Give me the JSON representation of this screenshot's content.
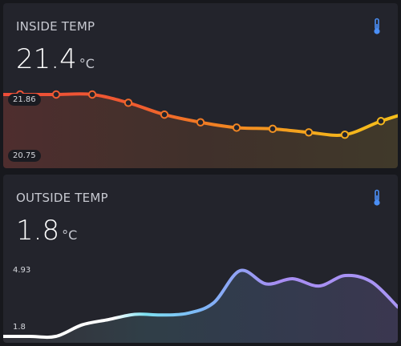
{
  "inside": {
    "title": "INSIDE TEMP",
    "value": "21.4",
    "unit": "°C",
    "max_label": "21.86",
    "min_label": "20.75",
    "icon": "thermometer-icon",
    "series": [
      21.86,
      21.86,
      21.86,
      21.86,
      21.72,
      21.52,
      21.39,
      21.3,
      21.28,
      21.22,
      21.18,
      21.41,
      21.6
    ]
  },
  "outside": {
    "title": "OUTSIDE TEMP",
    "value": "1.8",
    "unit": "°C",
    "max_label": "4.93",
    "min_label": "1.8",
    "icon": "thermometer-icon",
    "series": [
      1.8,
      1.8,
      1.8,
      2.35,
      2.6,
      2.85,
      2.82,
      2.9,
      3.4,
      4.93,
      4.3,
      4.55,
      4.2,
      4.7,
      4.4,
      3.2
    ]
  },
  "colors": {
    "accent_icon": "#4a8ef5",
    "inside_gradient": [
      "#ee4b3a",
      "#f07a24",
      "#f5c21b"
    ],
    "outside_gradient": [
      "#ffffff",
      "#7ee0f0",
      "#7db6f7",
      "#a78cf2",
      "#a996f5"
    ]
  }
}
